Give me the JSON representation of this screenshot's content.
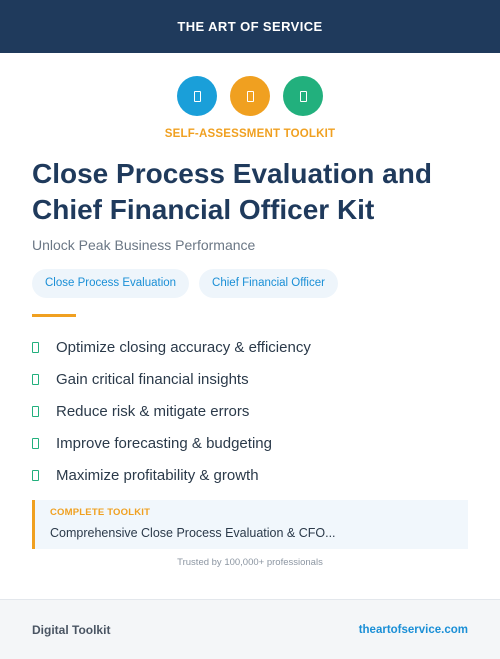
{
  "header": {
    "brand": "THE ART OF SERVICE"
  },
  "icons": [
    {
      "name": "document-icon",
      "color": "#1a9fd9"
    },
    {
      "name": "document-icon",
      "color": "#f0a020"
    },
    {
      "name": "document-icon",
      "color": "#22b07d"
    }
  ],
  "eyebrow": "SELF-ASSESSMENT TOOLKIT",
  "title": {
    "line1": "Close Process Evaluation and",
    "line2": "Chief Financial Officer Kit"
  },
  "subtitle": "Unlock Peak Business Performance",
  "tags": [
    "Close Process Evaluation",
    "Chief Financial Officer"
  ],
  "benefits": [
    "Optimize closing accuracy & efficiency",
    "Gain critical financial insights",
    "Reduce risk & mitigate errors",
    "Improve forecasting & budgeting",
    "Maximize profitability & growth"
  ],
  "callout": {
    "label": "COMPLETE TOOLKIT",
    "value": "Comprehensive Close Process Evaluation & CFO..."
  },
  "trusted": "Trusted by 100,000+ professionals",
  "footer": {
    "left": "Digital Toolkit",
    "right": "theartofservice.com"
  },
  "colors": {
    "navy": "#1f3a5c",
    "orange": "#f0a020",
    "blue": "#1a8fd6",
    "green": "#22b07d"
  }
}
